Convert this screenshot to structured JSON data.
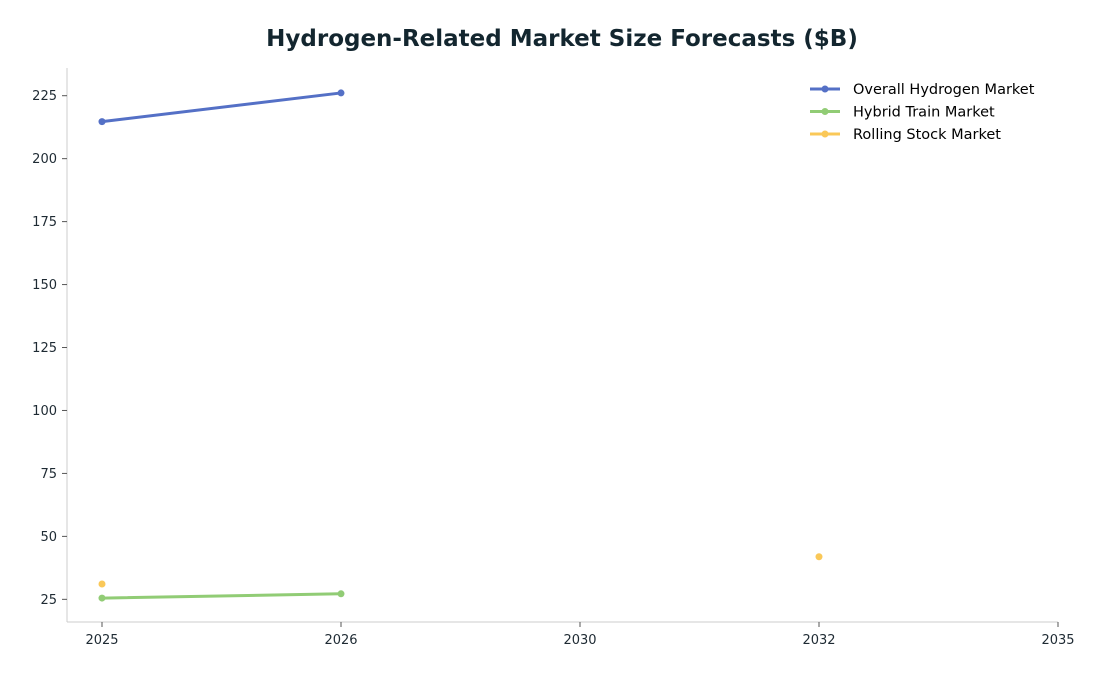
{
  "chart_data": {
    "type": "line",
    "title": "Hydrogen-Related Market Size Forecasts ($B)",
    "xlabel": "",
    "ylabel": "",
    "categories": [
      "2025",
      "2026",
      "2030",
      "2032",
      "2035"
    ],
    "y_ticks": [
      25,
      50,
      75,
      100,
      125,
      150,
      175,
      200,
      225
    ],
    "ylim": [
      16,
      236
    ],
    "grid": false,
    "legend_position": "top-right",
    "series": [
      {
        "name": "Overall Hydrogen Market",
        "color": "#5470c6",
        "values": [
          214.7,
          226.1,
          null,
          null,
          null
        ]
      },
      {
        "name": "Hybrid Train Market",
        "color": "#91cc75",
        "values": [
          25.5,
          27.2,
          null,
          null,
          null
        ]
      },
      {
        "name": "Rolling Stock Market",
        "color": "#fac858",
        "values": [
          31.1,
          null,
          null,
          41.9,
          null
        ]
      }
    ]
  }
}
